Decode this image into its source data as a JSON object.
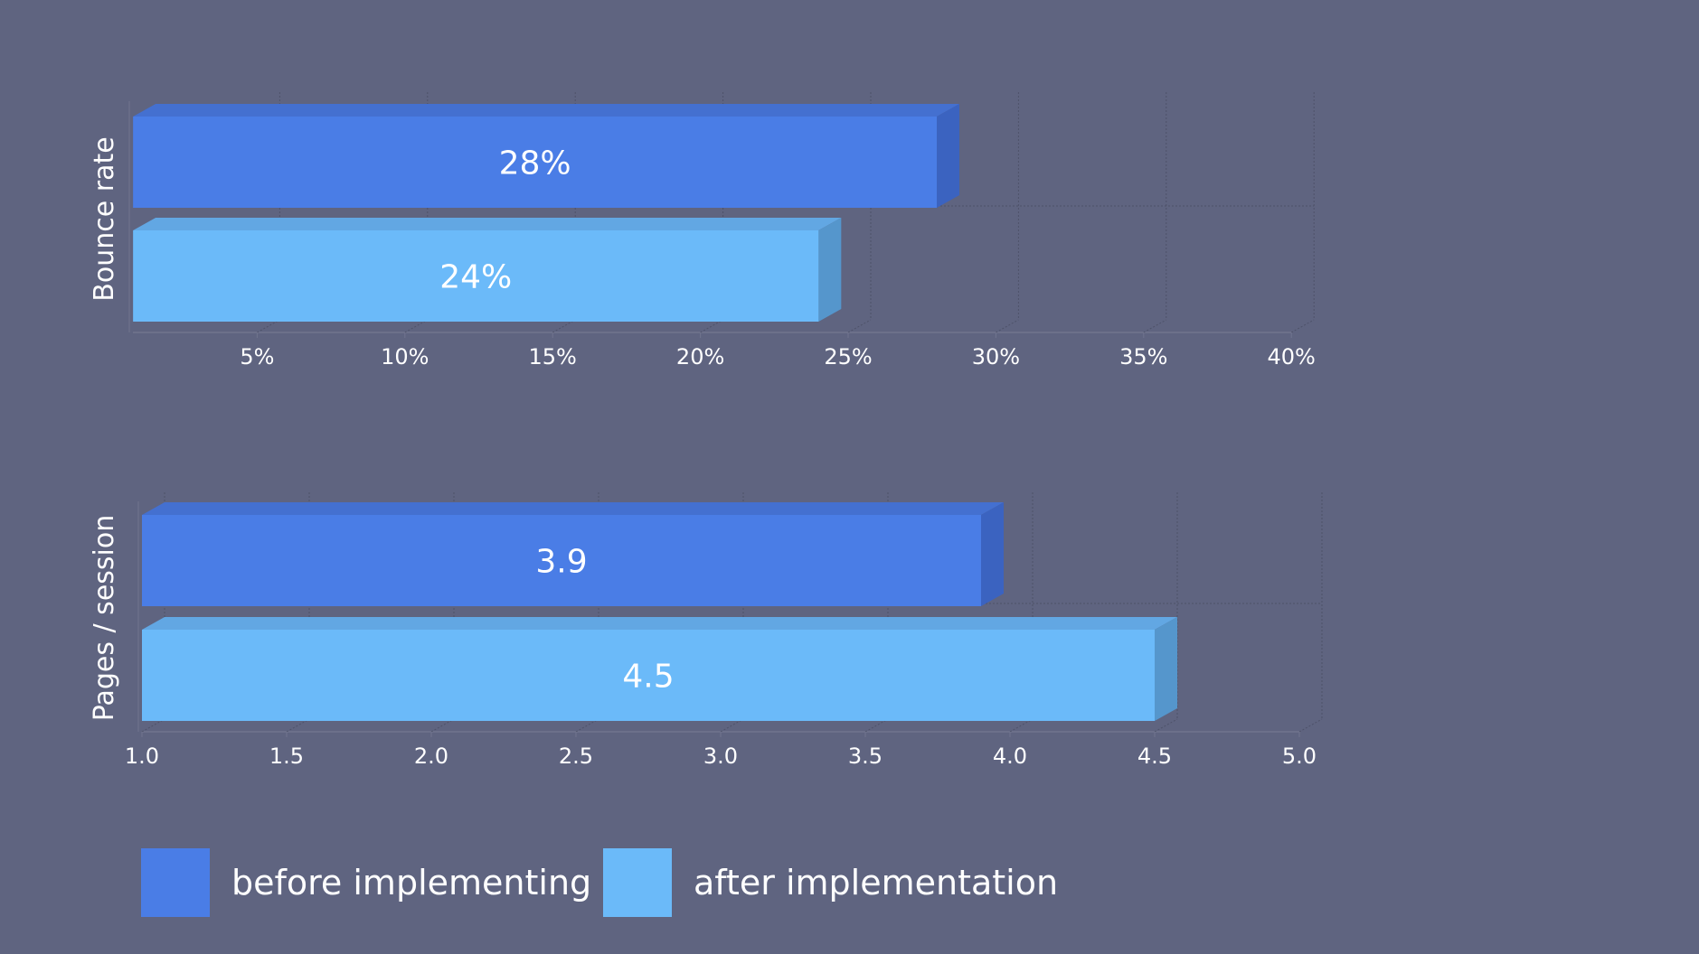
{
  "chart_data": [
    {
      "type": "bar",
      "orientation": "horizontal",
      "style": "3d",
      "ylabel": "Bounce rate",
      "categories": [
        "Bounce rate"
      ],
      "series": [
        {
          "name": "before implementing",
          "values": [
            28
          ],
          "label": "28%"
        },
        {
          "name": "after implementation",
          "values": [
            24
          ],
          "label": "24%"
        }
      ],
      "xlim": [
        0.8,
        40
      ],
      "xticks": [
        5,
        10,
        15,
        20,
        25,
        30,
        35,
        40
      ],
      "xtick_labels": [
        "5%",
        "10%",
        "15%",
        "20%",
        "25%",
        "30%",
        "35%",
        "40%"
      ],
      "grid": true
    },
    {
      "type": "bar",
      "orientation": "horizontal",
      "style": "3d",
      "ylabel": "Pages / session",
      "categories": [
        "Pages / session"
      ],
      "series": [
        {
          "name": "before implementing",
          "values": [
            3.9
          ],
          "label": "3.9"
        },
        {
          "name": "after implementation",
          "values": [
            4.5
          ],
          "label": "4.5"
        }
      ],
      "xlim": [
        1.0,
        5.0
      ],
      "xticks": [
        1.0,
        1.5,
        2.0,
        2.5,
        3.0,
        3.5,
        4.0,
        4.5,
        5.0
      ],
      "xtick_labels": [
        "1.0",
        "1.5",
        "2.0",
        "2.5",
        "3.0",
        "3.5",
        "4.0",
        "4.5",
        "5.0"
      ],
      "grid": true
    }
  ],
  "legend": {
    "placement": "bottom-left",
    "items": [
      {
        "label": "before implementing",
        "color": "#4a7de6"
      },
      {
        "label": "after implementation",
        "color": "#6bbaf9"
      }
    ]
  },
  "colors": {
    "background": "#5f6480",
    "before": {
      "front": "#4a7de6",
      "top": "#4470d0",
      "side": "#3b63c0"
    },
    "after": {
      "front": "#6bbaf9",
      "top": "#62a7e3",
      "side": "#5596cc"
    }
  }
}
